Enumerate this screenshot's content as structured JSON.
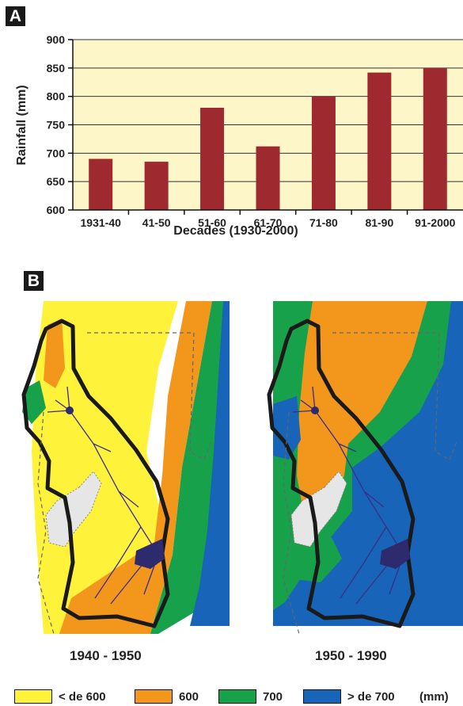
{
  "panel_a": {
    "letter": "A"
  },
  "panel_b": {
    "letter": "B"
  },
  "chart_data": {
    "type": "bar",
    "title": "",
    "xlabel": "Decades (1930-2000)",
    "ylabel": "Rainfall (mm)",
    "ylim": [
      600,
      900
    ],
    "yticks": [
      600,
      650,
      700,
      750,
      800,
      850,
      900
    ],
    "categories": [
      "1931-40",
      "41-50",
      "51-60",
      "61-70",
      "71-80",
      "81-90",
      "91-2000"
    ],
    "values": [
      690,
      685,
      780,
      712,
      800,
      842,
      850
    ],
    "bar_color": "#9e2a2f",
    "background_color": "#fdf6c8",
    "grid": "horizontal",
    "legend": "none"
  },
  "maps": {
    "left_caption": "1940 - 1950",
    "right_caption": "1950 - 1990"
  },
  "legend": {
    "items": [
      {
        "label": "< de 600",
        "color": "#fff23a"
      },
      {
        "label": "600",
        "color": "#f3961c"
      },
      {
        "label": "700",
        "color": "#16a14a"
      },
      {
        "label": "> de 700",
        "color": "#1764b8"
      }
    ],
    "unit": "(mm)"
  }
}
